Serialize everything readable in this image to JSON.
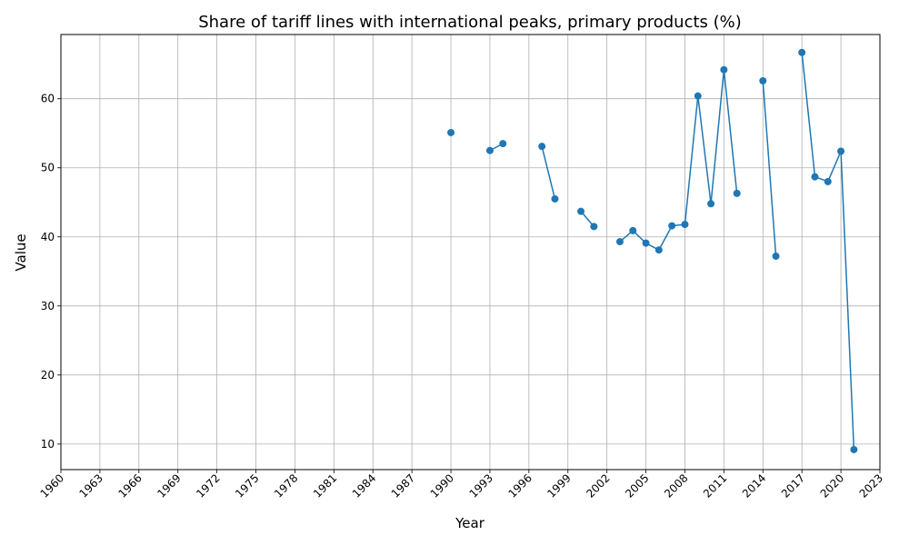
{
  "chart_data": {
    "type": "line",
    "title": "Share of tariff lines with international peaks, primary products (%)",
    "xlabel": "Year",
    "ylabel": "Value",
    "xlim": [
      1960,
      2023
    ],
    "ylim": [
      6.3,
      69.3
    ],
    "x_ticks": [
      1960,
      1963,
      1966,
      1969,
      1972,
      1975,
      1978,
      1981,
      1984,
      1987,
      1990,
      1993,
      1996,
      1999,
      2002,
      2005,
      2008,
      2011,
      2014,
      2017,
      2020,
      2023
    ],
    "y_ticks": [
      10,
      20,
      30,
      40,
      50,
      60
    ],
    "grid": true,
    "color": "#1f77b4",
    "series": [
      {
        "x": [
          1960,
          1961,
          1962,
          1963,
          1964,
          1965,
          1966,
          1967,
          1968,
          1969,
          1970,
          1971,
          1972,
          1973,
          1974,
          1975,
          1976,
          1977,
          1978,
          1979,
          1980,
          1981,
          1982,
          1983,
          1984,
          1985,
          1986,
          1987,
          1988,
          1989,
          1990,
          1991,
          1992,
          1993,
          1994,
          1995,
          1996,
          1997,
          1998,
          1999,
          2000,
          2001,
          2002,
          2003,
          2004,
          2005,
          2006,
          2007,
          2008,
          2009,
          2010,
          2011,
          2012,
          2013,
          2014,
          2015,
          2016,
          2017,
          2018,
          2019,
          2020,
          2021
        ],
        "values": [
          null,
          null,
          null,
          null,
          null,
          null,
          null,
          null,
          null,
          null,
          null,
          null,
          null,
          null,
          null,
          null,
          null,
          null,
          null,
          null,
          null,
          null,
          null,
          null,
          null,
          null,
          null,
          null,
          null,
          null,
          55.1,
          null,
          null,
          52.5,
          53.5,
          null,
          null,
          53.1,
          45.5,
          null,
          43.7,
          41.5,
          null,
          39.3,
          40.9,
          39.1,
          38.1,
          41.6,
          41.8,
          60.4,
          44.8,
          64.2,
          46.3,
          null,
          62.6,
          37.2,
          null,
          66.7,
          48.7,
          48.0,
          52.4,
          9.2
        ]
      }
    ]
  }
}
